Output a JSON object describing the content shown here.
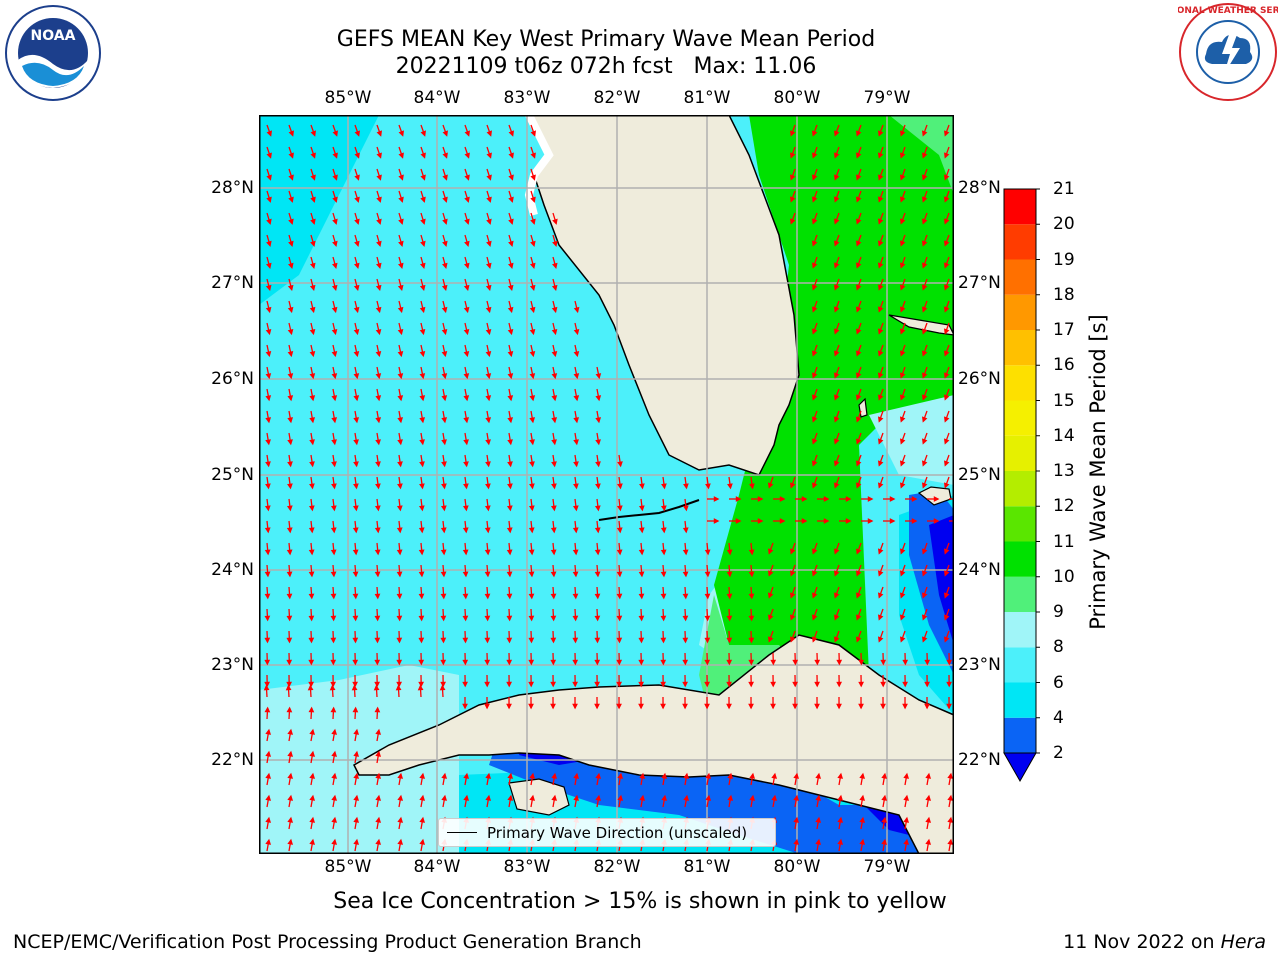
{
  "title": {
    "line1": "GEFS MEAN Key West Primary Wave Mean Period",
    "line2": "20221109 t06z 072h fcst   Max: 11.06"
  },
  "map": {
    "lon_ticks": [
      "85°W",
      "84°W",
      "83°W",
      "82°W",
      "81°W",
      "80°W",
      "79°W"
    ],
    "lat_ticks": [
      "28°N",
      "27°N",
      "26°N",
      "25°N",
      "24°N",
      "23°N",
      "22°N"
    ],
    "land_color": "#efecdc",
    "arrow_color": "#ff0000",
    "grid_color": "#b0b0b0"
  },
  "colorbar": {
    "label": "Primary Wave Mean Period [s]",
    "ticks": [
      "2",
      "4",
      "6",
      "8",
      "9",
      "10",
      "11",
      "12",
      "13",
      "14",
      "15",
      "16",
      "17",
      "18",
      "19",
      "20",
      "21"
    ],
    "levels": [
      {
        "value": "2-4",
        "color": "#0a64f5"
      },
      {
        "value": "4-6",
        "color": "#00e6f5"
      },
      {
        "value": "6-8",
        "color": "#4cf0fa"
      },
      {
        "value": "8-9",
        "color": "#a0f5f8"
      },
      {
        "value": "9-10",
        "color": "#50f07a"
      },
      {
        "value": "10-11",
        "color": "#00e100"
      },
      {
        "value": "11-12",
        "color": "#5ae600"
      },
      {
        "value": "12-13",
        "color": "#b4ed00"
      },
      {
        "value": "13-14",
        "color": "#e6f000"
      },
      {
        "value": "14-15",
        "color": "#f5f000"
      },
      {
        "value": "15-16",
        "color": "#fde000"
      },
      {
        "value": "16-17",
        "color": "#ffc000"
      },
      {
        "value": "17-18",
        "color": "#ff9800"
      },
      {
        "value": "18-19",
        "color": "#ff7000"
      },
      {
        "value": "19-20",
        "color": "#ff3c00"
      },
      {
        "value": "20-21",
        "color": "#ff0000"
      }
    ],
    "under_color": "#0000f0"
  },
  "legend": {
    "label": "Primary Wave Direction (unscaled)"
  },
  "caption": "Sea Ice Concentration > 15% is shown in pink to yellow",
  "footer": {
    "left": "NCEP/EMC/Verification Post Processing Product Generation Branch",
    "right_prefix": "11 Nov 2022 on ",
    "right_host": "Hera"
  },
  "logos": {
    "noaa": "NOAA",
    "nws": "NATIONAL WEATHER SERVICE"
  }
}
